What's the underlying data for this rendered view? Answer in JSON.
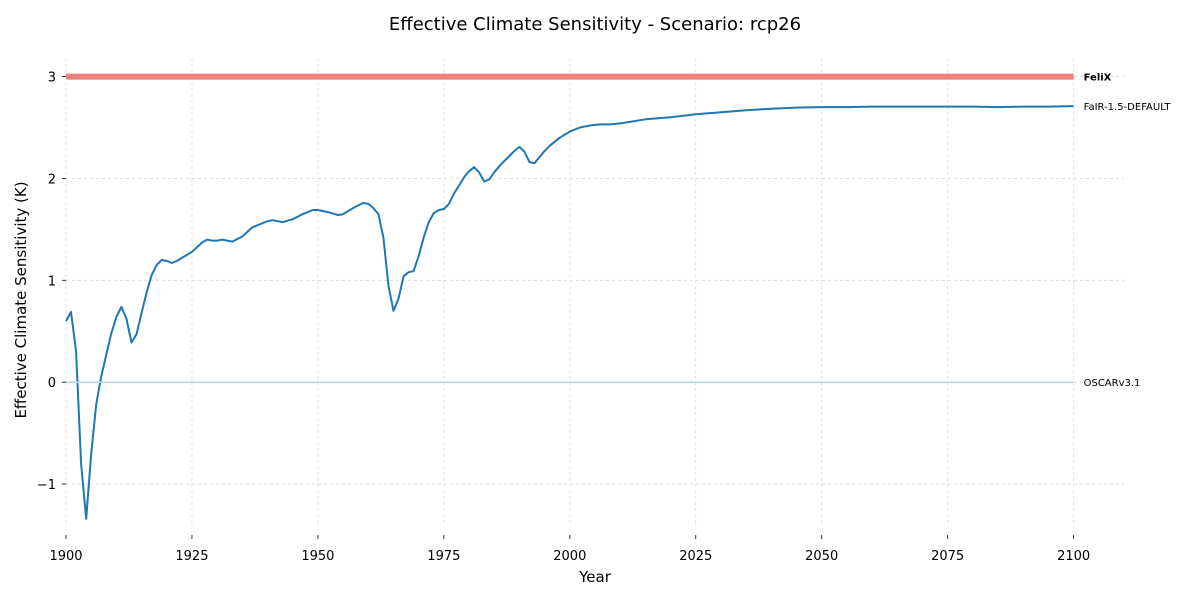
{
  "chart_data": {
    "type": "line",
    "title": "Effective Climate Sensitivity - Scenario: rcp26",
    "xlabel": "Year",
    "ylabel": "Effective Climate Sensitivity (K)",
    "xlim": [
      1900,
      2110
    ],
    "ylim": [
      -1.5,
      3.3
    ],
    "xticks": [
      1900,
      1925,
      1950,
      1975,
      2000,
      2025,
      2050,
      2075,
      2100
    ],
    "yticks": [
      -1,
      0,
      1,
      2,
      3
    ],
    "grid": true,
    "series": [
      {
        "name": "FeliX",
        "color": "#f08080",
        "bold_label": true,
        "x": [
          1900,
          2100
        ],
        "y": [
          3.0,
          3.0
        ]
      },
      {
        "name": "FaIR-1.5-DEFAULT",
        "color": "#1f77b4",
        "bold_label": false,
        "x": [
          1900,
          1901,
          1902,
          1903,
          1904,
          1905,
          1906,
          1907,
          1908,
          1909,
          1910,
          1911,
          1912,
          1913,
          1914,
          1915,
          1916,
          1917,
          1918,
          1919,
          1920,
          1921,
          1922,
          1923,
          1925,
          1927,
          1928,
          1929,
          1930,
          1931,
          1933,
          1935,
          1937,
          1940,
          1941,
          1943,
          1945,
          1947,
          1949,
          1950,
          1952,
          1954,
          1955,
          1957,
          1959,
          1960,
          1961,
          1962,
          1963,
          1964,
          1965,
          1966,
          1967,
          1968,
          1969,
          1970,
          1971,
          1972,
          1973,
          1974,
          1975,
          1976,
          1977,
          1978,
          1979,
          1980,
          1981,
          1982,
          1983,
          1984,
          1985,
          1986,
          1987,
          1988,
          1989,
          1990,
          1991,
          1992,
          1993,
          1994,
          1995,
          1996,
          1998,
          2000,
          2002,
          2004,
          2006,
          2008,
          2010,
          2015,
          2020,
          2025,
          2030,
          2035,
          2040,
          2045,
          2050,
          2055,
          2060,
          2065,
          2070,
          2075,
          2080,
          2085,
          2090,
          2095,
          2100
        ],
        "y": [
          0.6,
          0.69,
          0.3,
          -0.8,
          -1.34,
          -0.7,
          -0.22,
          0.06,
          0.27,
          0.48,
          0.64,
          0.74,
          0.62,
          0.39,
          0.47,
          0.68,
          0.88,
          1.05,
          1.15,
          1.2,
          1.19,
          1.17,
          1.19,
          1.22,
          1.28,
          1.37,
          1.4,
          1.39,
          1.39,
          1.4,
          1.38,
          1.43,
          1.52,
          1.58,
          1.59,
          1.57,
          1.6,
          1.65,
          1.69,
          1.69,
          1.67,
          1.64,
          1.65,
          1.71,
          1.76,
          1.75,
          1.71,
          1.65,
          1.42,
          0.95,
          0.7,
          0.82,
          1.04,
          1.08,
          1.09,
          1.24,
          1.42,
          1.57,
          1.66,
          1.69,
          1.7,
          1.75,
          1.85,
          1.93,
          2.01,
          2.07,
          2.11,
          2.06,
          1.97,
          1.99,
          2.06,
          2.12,
          2.17,
          2.22,
          2.27,
          2.31,
          2.26,
          2.16,
          2.15,
          2.21,
          2.27,
          2.32,
          2.4,
          2.46,
          2.5,
          2.52,
          2.53,
          2.53,
          2.54,
          2.58,
          2.6,
          2.63,
          2.65,
          2.67,
          2.685,
          2.695,
          2.7,
          2.7,
          2.705,
          2.705,
          2.705,
          2.705,
          2.705,
          2.7,
          2.705,
          2.705,
          2.71
        ]
      },
      {
        "name": "OSCARv3.1",
        "color": "#add8e6",
        "bold_label": false,
        "x": [
          1900,
          2100
        ],
        "y": [
          0.0,
          0.0
        ]
      }
    ]
  }
}
